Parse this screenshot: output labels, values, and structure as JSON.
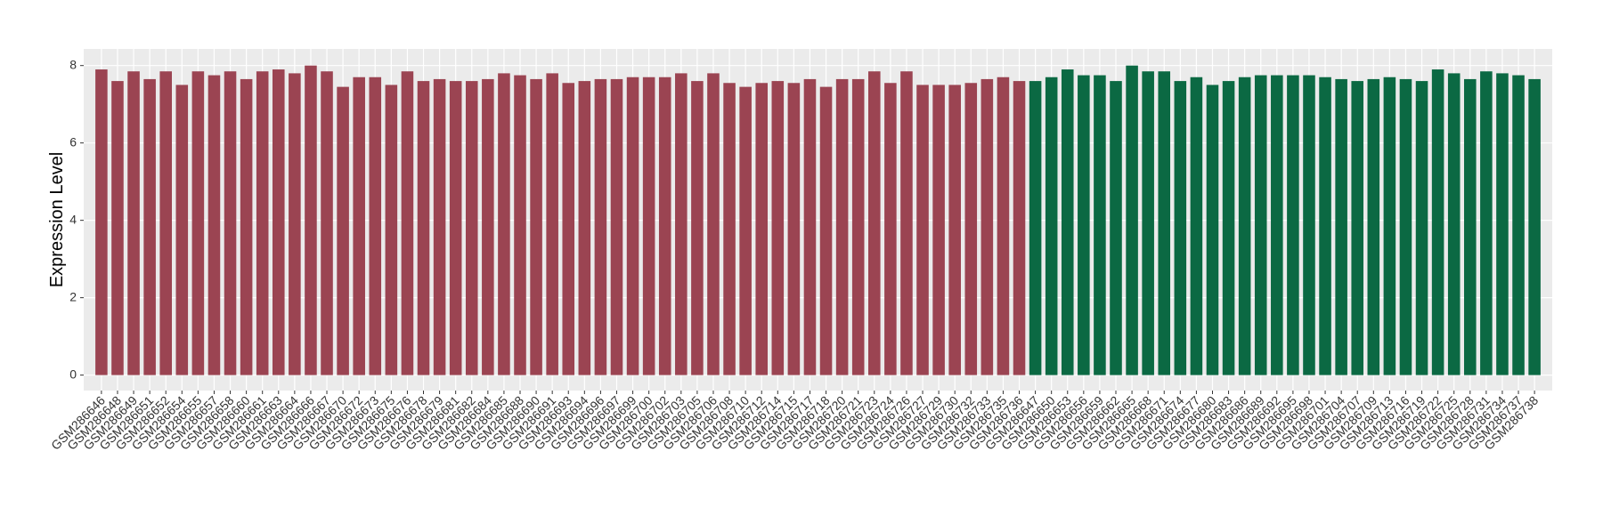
{
  "chart_data": {
    "type": "bar",
    "y_label": "Expression Level",
    "categories": [
      "GSM286646",
      "GSM286648",
      "GSM286649",
      "GSM286651",
      "GSM286652",
      "GSM286654",
      "GSM286655",
      "GSM286657",
      "GSM286658",
      "GSM286660",
      "GSM286661",
      "GSM286663",
      "GSM286664",
      "GSM286666",
      "GSM286667",
      "GSM286670",
      "GSM286672",
      "GSM286673",
      "GSM286675",
      "GSM286676",
      "GSM286678",
      "GSM286679",
      "GSM286681",
      "GSM286682",
      "GSM286684",
      "GSM286685",
      "GSM286688",
      "GSM286690",
      "GSM286691",
      "GSM286693",
      "GSM286694",
      "GSM286696",
      "GSM286697",
      "GSM286699",
      "GSM286700",
      "GSM286702",
      "GSM286703",
      "GSM286705",
      "GSM286706",
      "GSM286708",
      "GSM286710",
      "GSM286712",
      "GSM286714",
      "GSM286715",
      "GSM286717",
      "GSM286718",
      "GSM286720",
      "GSM286721",
      "GSM286723",
      "GSM286724",
      "GSM286726",
      "GSM286727",
      "GSM286729",
      "GSM286730",
      "GSM286732",
      "GSM286733",
      "GSM286735",
      "GSM286736",
      "GSM286647",
      "GSM286650",
      "GSM286653",
      "GSM286656",
      "GSM286659",
      "GSM286662",
      "GSM286665",
      "GSM286668",
      "GSM286671",
      "GSM286674",
      "GSM286677",
      "GSM286680",
      "GSM286683",
      "GSM286686",
      "GSM286689",
      "GSM286692",
      "GSM286695",
      "GSM286698",
      "GSM286701",
      "GSM286704",
      "GSM286707",
      "GSM286709",
      "GSM286713",
      "GSM286716",
      "GSM286719",
      "GSM286722",
      "GSM286725",
      "GSM286728",
      "GSM286731",
      "GSM286734",
      "GSM286737",
      "GSM286738"
    ],
    "values": [
      7.9,
      7.6,
      7.85,
      7.65,
      7.85,
      7.5,
      7.85,
      7.75,
      7.85,
      7.65,
      7.85,
      7.9,
      7.8,
      8.0,
      7.85,
      7.45,
      7.7,
      7.7,
      7.5,
      7.85,
      7.6,
      7.65,
      7.6,
      7.6,
      7.65,
      7.8,
      7.75,
      7.65,
      7.8,
      7.55,
      7.6,
      7.65,
      7.65,
      7.7,
      7.7,
      7.7,
      7.8,
      7.6,
      7.8,
      7.55,
      7.45,
      7.55,
      7.6,
      7.55,
      7.65,
      7.45,
      7.65,
      7.65,
      7.85,
      7.55,
      7.85,
      7.5,
      7.5,
      7.5,
      7.55,
      7.65,
      7.7,
      7.6,
      7.6,
      7.7,
      7.9,
      7.75,
      7.75,
      7.6,
      8.0,
      7.85,
      7.85,
      7.6,
      7.7,
      7.5,
      7.6,
      7.7,
      7.75,
      7.75,
      7.75,
      7.75,
      7.7,
      7.65,
      7.6,
      7.65,
      7.7,
      7.65,
      7.6,
      7.9,
      7.8,
      7.65,
      7.85,
      7.8,
      7.75,
      7.65
    ],
    "colors": [
      "#9b4452",
      "#9b4452",
      "#9b4452",
      "#9b4452",
      "#9b4452",
      "#9b4452",
      "#9b4452",
      "#9b4452",
      "#9b4452",
      "#9b4452",
      "#9b4452",
      "#9b4452",
      "#9b4452",
      "#9b4452",
      "#9b4452",
      "#9b4452",
      "#9b4452",
      "#9b4452",
      "#9b4452",
      "#9b4452",
      "#9b4452",
      "#9b4452",
      "#9b4452",
      "#9b4452",
      "#9b4452",
      "#9b4452",
      "#9b4452",
      "#9b4452",
      "#9b4452",
      "#9b4452",
      "#9b4452",
      "#9b4452",
      "#9b4452",
      "#9b4452",
      "#9b4452",
      "#9b4452",
      "#9b4452",
      "#9b4452",
      "#9b4452",
      "#9b4452",
      "#9b4452",
      "#9b4452",
      "#9b4452",
      "#9b4452",
      "#9b4452",
      "#9b4452",
      "#9b4452",
      "#9b4452",
      "#9b4452",
      "#9b4452",
      "#9b4452",
      "#9b4452",
      "#9b4452",
      "#9b4452",
      "#9b4452",
      "#9b4452",
      "#9b4452",
      "#9b4452",
      "#0b6943",
      "#0b6943",
      "#0b6943",
      "#0b6943",
      "#0b6943",
      "#0b6943",
      "#0b6943",
      "#0b6943",
      "#0b6943",
      "#0b6943",
      "#0b6943",
      "#0b6943",
      "#0b6943",
      "#0b6943",
      "#0b6943",
      "#0b6943",
      "#0b6943",
      "#0b6943",
      "#0b6943",
      "#0b6943",
      "#0b6943",
      "#0b6943",
      "#0b6943",
      "#0b6943",
      "#0b6943",
      "#0b6943",
      "#0b6943",
      "#0b6943",
      "#0b6943",
      "#0b6943",
      "#0b6943",
      "#0b6943"
    ],
    "ylim": [
      -0.4,
      8.43
    ],
    "yticks": [
      0,
      2,
      4,
      6,
      8
    ],
    "grid": true
  }
}
